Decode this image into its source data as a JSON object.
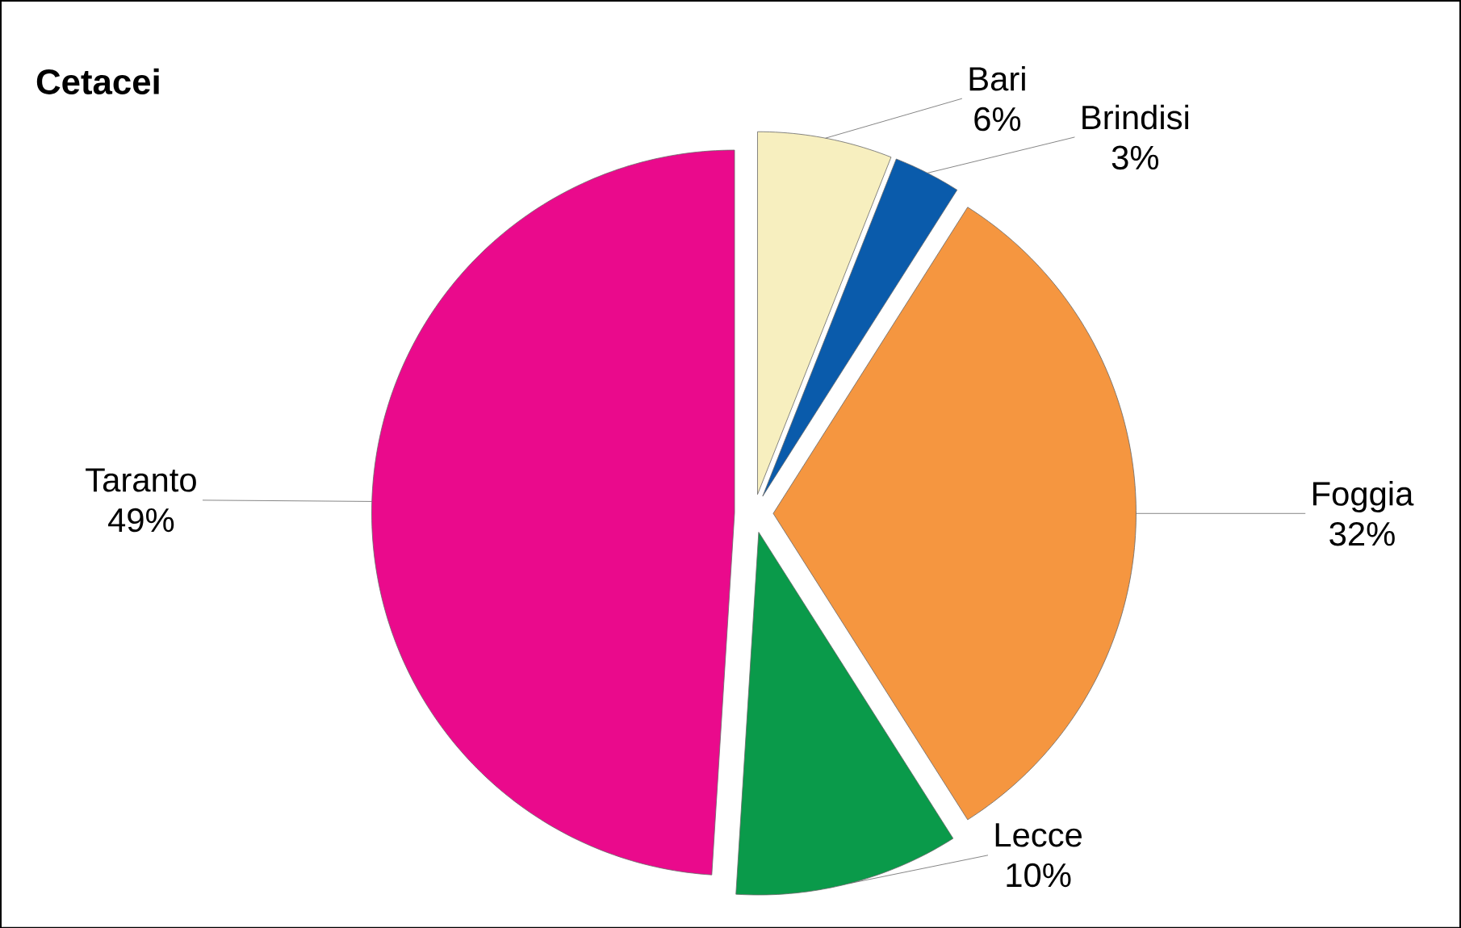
{
  "chart_data": {
    "type": "pie",
    "title": "Cetacei",
    "categories": [
      "Bari",
      "Brindisi",
      "Foggia",
      "Lecce",
      "Taranto"
    ],
    "values": [
      6,
      3,
      32,
      10,
      49
    ],
    "value_labels": [
      "6%",
      "3%",
      "32%",
      "10%",
      "49%"
    ],
    "colors": [
      "#f7efbf",
      "#0a5bab",
      "#f59640",
      "#0a9a4a",
      "#ea0a8c"
    ]
  }
}
